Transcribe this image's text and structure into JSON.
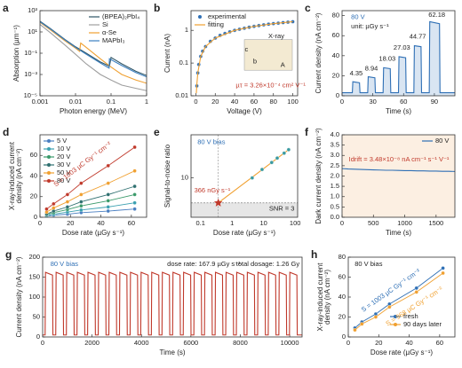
{
  "chart_data": [
    {
      "type": "line",
      "panel": "a",
      "xlabel": "Photon energy (MeV)",
      "ylabel": "Absorption (µm⁻¹)",
      "xlog": true,
      "ylog": true,
      "xlim": [
        0.001,
        1
      ],
      "ylim": [
        1e-05,
        1000
      ],
      "xticks": [
        0.001,
        0.01,
        0.1,
        1
      ],
      "yticks": [
        {
          "value": 1e-05,
          "label": "10⁻⁵"
        },
        {
          "value": 0.001,
          "label": "10⁻³"
        },
        {
          "value": 0.1,
          "label": "10⁻¹"
        },
        {
          "value": 10,
          "label": "10¹"
        },
        {
          "value": 1000,
          "label": "10³"
        }
      ],
      "legend": "upper right",
      "series": [
        {
          "name": "(BPEA)₂PbI₄",
          "color": "#2f5566",
          "mode": "line",
          "x": [
            0.001,
            0.002,
            0.005,
            0.01,
            0.02,
            0.05,
            0.09,
            0.1,
            0.2,
            0.5,
            1
          ],
          "values": [
            100,
            20,
            2,
            0.4,
            0.1,
            0.015,
            0.006,
            0.04,
            0.01,
            0.002,
            0.0008
          ]
        },
        {
          "name": "Si",
          "color": "#9e9e9e",
          "mode": "line",
          "x": [
            0.001,
            0.002,
            0.005,
            0.01,
            0.02,
            0.05,
            0.1,
            0.2,
            0.5,
            1
          ],
          "values": [
            50,
            8,
            0.6,
            0.08,
            0.01,
            0.001,
            0.0003,
            0.0001,
            5e-05,
            3e-05
          ]
        },
        {
          "name": "α-Se",
          "color": "#f0a030",
          "mode": "line",
          "x": [
            0.001,
            0.002,
            0.005,
            0.01,
            0.013,
            0.014,
            0.02,
            0.05,
            0.1,
            0.2,
            0.5,
            1
          ],
          "values": [
            80,
            15,
            1.5,
            0.3,
            0.15,
            0.9,
            0.35,
            0.03,
            0.005,
            0.001,
            0.0003,
            0.00015
          ]
        },
        {
          "name": "MAPbI₃",
          "color": "#3a7fc0",
          "mode": "line",
          "x": [
            0.001,
            0.002,
            0.005,
            0.01,
            0.02,
            0.05,
            0.088,
            0.09,
            0.2,
            0.5,
            1
          ],
          "values": [
            90,
            18,
            1.8,
            0.35,
            0.08,
            0.012,
            0.004,
            0.03,
            0.007,
            0.0015,
            0.0006
          ]
        }
      ]
    },
    {
      "type": "line",
      "panel": "b",
      "xlabel": "Voltage (V)",
      "ylabel": "Current (nA)",
      "ylog": true,
      "xlim": [
        -5,
        105
      ],
      "ylim": [
        0.01,
        4
      ],
      "xticks": [
        0,
        20,
        40,
        60,
        80,
        100
      ],
      "yticks": [
        0.01,
        0.1,
        1
      ],
      "legend": "upper left",
      "series": [
        {
          "name": "experimental",
          "color": "#2e6fb5",
          "mode": "markers",
          "x": [
            1,
            2,
            3,
            5,
            7,
            10,
            15,
            20,
            25,
            30,
            35,
            40,
            45,
            50,
            55,
            60,
            65,
            70,
            75,
            80,
            85,
            90,
            95,
            100
          ],
          "values": [
            0.02,
            0.05,
            0.09,
            0.16,
            0.23,
            0.32,
            0.46,
            0.58,
            0.7,
            0.8,
            0.9,
            1.0,
            1.08,
            1.16,
            1.24,
            1.32,
            1.4,
            1.47,
            1.54,
            1.6,
            1.66,
            1.72,
            1.78,
            1.84
          ]
        },
        {
          "name": "fitting",
          "color": "#f0a030",
          "mode": "line",
          "x": [
            0.5,
            1,
            2,
            5,
            10,
            20,
            40,
            60,
            80,
            100
          ],
          "values": [
            0.012,
            0.022,
            0.05,
            0.16,
            0.32,
            0.58,
            1.0,
            1.32,
            1.6,
            1.84
          ]
        }
      ],
      "annotations": [
        {
          "text": "µτ = 3.26×10⁻⁴ cm² V⁻¹",
          "color": "#c0392b"
        },
        {
          "text": "X-ray"
        },
        {
          "text": "c"
        },
        {
          "text": "b"
        },
        {
          "text": "A"
        }
      ]
    },
    {
      "type": "line",
      "panel": "c",
      "xlabel": "Time (s)",
      "ylabel": "Current density (nA cm⁻²)",
      "xlim": [
        0,
        110
      ],
      "ylim": [
        0,
        85
      ],
      "xticks": [
        0,
        30,
        60,
        90
      ],
      "yticks": [
        0,
        20,
        40,
        60,
        80
      ],
      "series": [
        {
          "color": "#2e6fb5",
          "mode": "line",
          "fill": true,
          "x": [
            0,
            10,
            10.5,
            17,
            17.5,
            25,
            25.5,
            32,
            32.5,
            40,
            40.5,
            47,
            47.5,
            55,
            55.5,
            62,
            62.5,
            70,
            70.5,
            77,
            77.5,
            85,
            85.5,
            95,
            95.5,
            110
          ],
          "values": [
            3,
            3,
            14,
            13,
            3,
            3,
            19,
            18,
            3,
            3,
            28,
            27,
            3,
            3,
            39,
            38,
            3,
            3,
            50,
            49,
            3,
            3,
            74,
            72,
            3,
            3
          ]
        }
      ],
      "annotations": [
        {
          "text": "80 V",
          "color": "#2e6fb5"
        },
        {
          "text": "unit: µGy s⁻¹"
        },
        {
          "text": "4.35"
        },
        {
          "text": "8.94"
        },
        {
          "text": "18.03"
        },
        {
          "text": "27.03"
        },
        {
          "text": "44.77"
        },
        {
          "text": "62.18"
        }
      ]
    },
    {
      "type": "line",
      "panel": "d",
      "xlabel": "Dose rate (µGy s⁻¹)",
      "ylabel": [
        "X-ray-induced current",
        "density (nA cm⁻²)"
      ],
      "xlim": [
        0,
        70
      ],
      "ylim": [
        0,
        80
      ],
      "xticks": [
        0,
        20,
        40,
        60
      ],
      "yticks": [
        0,
        20,
        40,
        60
      ],
      "legend": "upper left",
      "series": [
        {
          "name": "5 V",
          "color": "#4a7fc1",
          "mode": "both",
          "x": [
            4.35,
            8.94,
            18.03,
            27.03,
            44.77,
            62.18
          ],
          "values": [
            1,
            2,
            3,
            4.5,
            6,
            8
          ]
        },
        {
          "name": "10 V",
          "color": "#3aa0b0",
          "mode": "both",
          "x": [
            4.35,
            8.94,
            18.03,
            27.03,
            44.77,
            62.18
          ],
          "values": [
            1.5,
            3,
            5,
            7,
            10,
            14
          ]
        },
        {
          "name": "20 V",
          "color": "#3a9a6a",
          "mode": "both",
          "x": [
            4.35,
            8.94,
            18.03,
            27.03,
            44.77,
            62.18
          ],
          "values": [
            2.5,
            4.5,
            7.5,
            11,
            16,
            22
          ]
        },
        {
          "name": "30 V",
          "color": "#2f7070",
          "mode": "both",
          "x": [
            4.35,
            8.94,
            18.03,
            27.03,
            44.77,
            62.18
          ],
          "values": [
            3,
            6,
            10,
            15,
            22,
            30
          ]
        },
        {
          "name": "50 V",
          "color": "#f0a030",
          "mode": "both",
          "x": [
            4.35,
            8.94,
            18.03,
            27.03,
            44.77,
            62.18
          ],
          "values": [
            5,
            9,
            15,
            22,
            33,
            45
          ]
        },
        {
          "name": "80 V",
          "color": "#c0392b",
          "mode": "both",
          "x": [
            4.35,
            8.94,
            18.03,
            27.03,
            44.77,
            62.18
          ],
          "values": [
            8,
            13,
            22,
            33,
            50,
            68
          ]
        }
      ],
      "annotations": [
        {
          "text": "S = 1003 µC Gy⁻¹ cm⁻²",
          "color": "#c0392b"
        }
      ]
    },
    {
      "type": "line",
      "panel": "e",
      "xlabel": "Dose rate (µGy s⁻¹)",
      "ylabel": "Signal-to-noise ratio",
      "xlog": true,
      "ylog": true,
      "xlim": [
        0.05,
        120
      ],
      "ylim": [
        1.5,
        80
      ],
      "xticks": [
        0.1,
        1,
        10,
        100
      ],
      "yticks": [
        10
      ],
      "hline": 3,
      "vline": 0.366,
      "series": [
        {
          "color": "#f0a030",
          "mode": "line",
          "x": [
            0.366,
            62.18
          ],
          "values": [
            3,
            39
          ]
        },
        {
          "color": "#3a9aa0",
          "mode": "markers",
          "x": [
            4.35,
            8.94,
            18.03,
            27.03,
            44.77,
            62.18
          ],
          "values": [
            10,
            15,
            21,
            26,
            33,
            39
          ]
        },
        {
          "color": "#c0392b",
          "mode": "markers",
          "marker": "star",
          "x": [
            0.366
          ],
          "values": [
            3
          ]
        }
      ],
      "annotations": [
        {
          "text": "80 V bias",
          "color": "#2e6fb5"
        },
        {
          "text": "366 nGy s⁻¹",
          "color": "#c0392b"
        },
        {
          "text": "SNR = 3"
        }
      ]
    },
    {
      "type": "line",
      "panel": "f",
      "xlabel": "Time (s)",
      "ylabel": "Dark current density (nA cm⁻²)",
      "xlim": [
        0,
        1800
      ],
      "ylim": [
        0,
        4
      ],
      "xticks": [
        0,
        500,
        1000,
        1500
      ],
      "yticks": [
        {
          "value": 0,
          "label": "0.0"
        },
        0.5,
        {
          "value": 1,
          "label": "1.0"
        },
        1.5,
        {
          "value": 2,
          "label": "2.0"
        },
        2.5,
        {
          "value": 3,
          "label": "3.0"
        },
        3.5,
        {
          "value": 4,
          "label": "4.0"
        }
      ],
      "legend": "upper right",
      "background": "#fcefe2",
      "series": [
        {
          "name": "80 V",
          "color": "#2e6fb5",
          "mode": "line",
          "x": [
            0,
            100,
            200,
            300,
            400,
            500,
            600,
            700,
            800,
            900,
            1000,
            1100,
            1200,
            1300,
            1400,
            1500,
            1600,
            1700,
            1800
          ],
          "values": [
            2.36,
            2.34,
            2.33,
            2.32,
            2.31,
            2.3,
            2.29,
            2.28,
            2.28,
            2.27,
            2.26,
            2.26,
            2.25,
            2.25,
            2.24,
            2.24,
            2.23,
            2.23,
            2.22
          ]
        }
      ],
      "annotations": [
        {
          "text": "Idrift = 3.48×10⁻⁸ nA cm⁻¹ s⁻¹ V⁻¹",
          "color": "#c0392b"
        }
      ]
    },
    {
      "type": "line",
      "panel": "g",
      "xlabel": "Time (s)",
      "ylabel": "Current density (nA cm⁻²)",
      "xlim": [
        0,
        10500
      ],
      "ylim": [
        0,
        200
      ],
      "xticks": [
        0,
        2000,
        4000,
        6000,
        8000,
        10000
      ],
      "yticks": [
        0,
        50,
        100,
        150,
        200
      ],
      "series": [
        {
          "color": "#c0392b",
          "mode": "line",
          "x": [
            0,
            100,
            115,
            400,
            415,
            530,
            545,
            830,
            845,
            960,
            975,
            1260,
            1275,
            1390,
            1405,
            1690,
            1705,
            1820,
            1835,
            2120,
            2135,
            2250,
            2265,
            2550,
            2565,
            2680,
            2695,
            2980,
            2995,
            3110,
            3125,
            3410,
            3425,
            3540,
            3555,
            3840,
            3855,
            3970,
            3985,
            4270,
            4285,
            4400,
            4415,
            4700,
            4715,
            4830,
            4845,
            5130,
            5145,
            5260,
            5275,
            5560,
            5575,
            5690,
            5705,
            5990,
            6005,
            6120,
            6135,
            6420,
            6435,
            6550,
            6565,
            6850,
            6865,
            6980,
            6995,
            7280,
            7295,
            7410,
            7425,
            7710,
            7725,
            7840,
            7855,
            8140,
            8155,
            8270,
            8285,
            8570,
            8585,
            8700,
            8715,
            9000,
            9015,
            9130,
            9145,
            9430,
            9445,
            9560,
            9575,
            9860,
            9875,
            9990,
            10005,
            10290,
            10305,
            10500
          ],
          "values": [
            5,
            5,
            162,
            155,
            5,
            5,
            162,
            155,
            5,
            5,
            162,
            155,
            5,
            5,
            162,
            155,
            5,
            5,
            162,
            155,
            5,
            5,
            162,
            155,
            5,
            5,
            162,
            155,
            5,
            5,
            162,
            155,
            5,
            5,
            162,
            155,
            5,
            5,
            162,
            155,
            5,
            5,
            162,
            155,
            5,
            5,
            162,
            155,
            5,
            5,
            162,
            155,
            5,
            5,
            162,
            155,
            5,
            5,
            162,
            155,
            5,
            5,
            162,
            155,
            5,
            5,
            162,
            155,
            5,
            5,
            162,
            155,
            5,
            5,
            162,
            155,
            5,
            5,
            162,
            155,
            5,
            5,
            162,
            155,
            5,
            5,
            162,
            155,
            5,
            5,
            162,
            155,
            5,
            5,
            162,
            155,
            5,
            5
          ]
        }
      ],
      "annotations": [
        {
          "text": "80 V bias",
          "color": "#2e6fb5"
        },
        {
          "text": "dose rate: 167.9 µGy s⁻¹"
        },
        {
          "text": "total dosage: 1.26 Gy"
        }
      ]
    },
    {
      "type": "line",
      "panel": "h",
      "xlabel": "Dose rate (µGy s⁻¹)",
      "ylabel": [
        "X-ray-induced current",
        "density (nA cm⁻²)"
      ],
      "xlim": [
        0,
        70
      ],
      "ylim": [
        0,
        80
      ],
      "xticks": [
        0,
        20,
        40,
        60
      ],
      "yticks": [
        0,
        20,
        40,
        60,
        80
      ],
      "legend": "lower right",
      "series": [
        {
          "name": "fresh",
          "color": "#2e6fb5",
          "mode": "both",
          "x": [
            4.35,
            8.94,
            18.03,
            27.03,
            44.77,
            62.18
          ],
          "values": [
            9,
            15,
            23,
            33,
            49,
            69
          ]
        },
        {
          "name": "90 days later",
          "color": "#f0a030",
          "mode": "both",
          "x": [
            4.35,
            8.94,
            18.03,
            27.03,
            44.77,
            62.18
          ],
          "values": [
            7,
            13,
            20,
            30,
            45,
            64
          ]
        }
      ],
      "annotations": [
        {
          "text": "80 V bias"
        },
        {
          "text": "S = 1003 µC Gy⁻¹ cm⁻²",
          "color": "#2e6fb5"
        },
        {
          "text": "S = 968 µC Gy⁻¹ cm⁻²",
          "color": "#f0a030"
        }
      ]
    }
  ]
}
